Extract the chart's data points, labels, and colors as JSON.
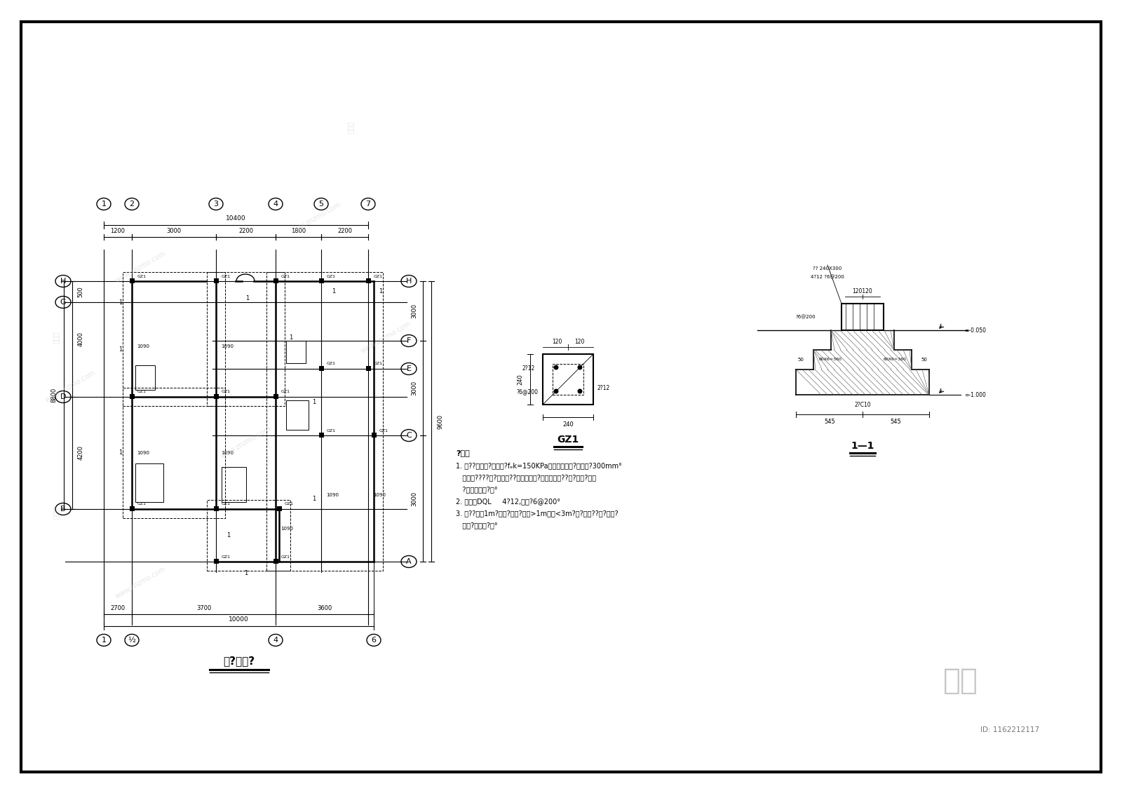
{
  "bg_color": "#ffffff",
  "border_color": "#000000",
  "line_color": "#000000",
  "title": "基?平面?",
  "watermark": "www.znzmo.com",
  "id_text": "ID: 1162212117",
  "brand": "知末"
}
